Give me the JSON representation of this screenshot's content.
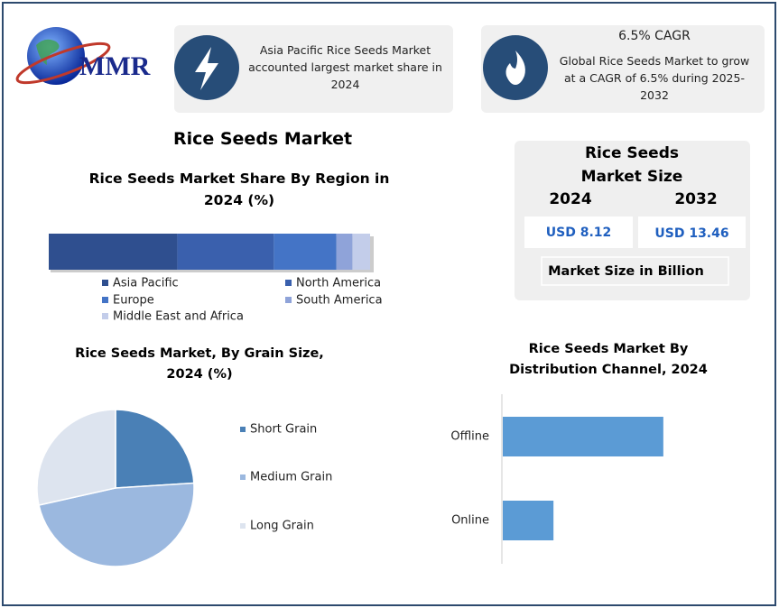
{
  "logo": {
    "text": "MMR"
  },
  "highlights": [
    {
      "text": "Asia Pacific Rice Seeds Market accounted largest market share in 2024"
    },
    {
      "heading": "6.5% CAGR",
      "text": "Global Rice Seeds Market to grow at a CAGR of 6.5% during 2025-2032"
    }
  ],
  "page_title": "Rice Seeds Market",
  "market_size": {
    "title": "Rice Seeds Market Size",
    "years": [
      "2024",
      "2032"
    ],
    "values": [
      "USD 8.12",
      "USD 13.46"
    ],
    "note": "Market Size in Billion"
  },
  "chart_data": [
    {
      "type": "stacked-bar",
      "title": "Rice Seeds Market Share By Region in 2024 (%)",
      "series": [
        {
          "name": "Asia Pacific",
          "color": "#2f4f8f",
          "values": [
            40
          ]
        },
        {
          "name": "North America",
          "color": "#3a60ad",
          "values": [
            30
          ]
        },
        {
          "name": "Europe",
          "color": "#4474c6",
          "values": [
            19.5
          ]
        },
        {
          "name": "South America",
          "color": "#8fa3d9",
          "values": [
            5
          ]
        },
        {
          "name": "Middle East and Africa",
          "color": "#c3cdea",
          "values": [
            5.5
          ]
        }
      ]
    },
    {
      "type": "pie",
      "title": "Rice Seeds Market, By Grain Size, 2024 (%)",
      "categories": [
        "Short Grain",
        "Medium Grain",
        "Long Grain"
      ],
      "values": [
        24,
        47.5,
        28.5
      ],
      "colors": [
        "#4a80b6",
        "#9bb8df",
        "#dde4ef"
      ]
    },
    {
      "type": "bar",
      "title": "Rice Seeds Market By Distribution Channel, 2024",
      "categories": [
        "Offline",
        "Online"
      ],
      "values": [
        76,
        24
      ],
      "color": "#5b9bd5"
    }
  ]
}
